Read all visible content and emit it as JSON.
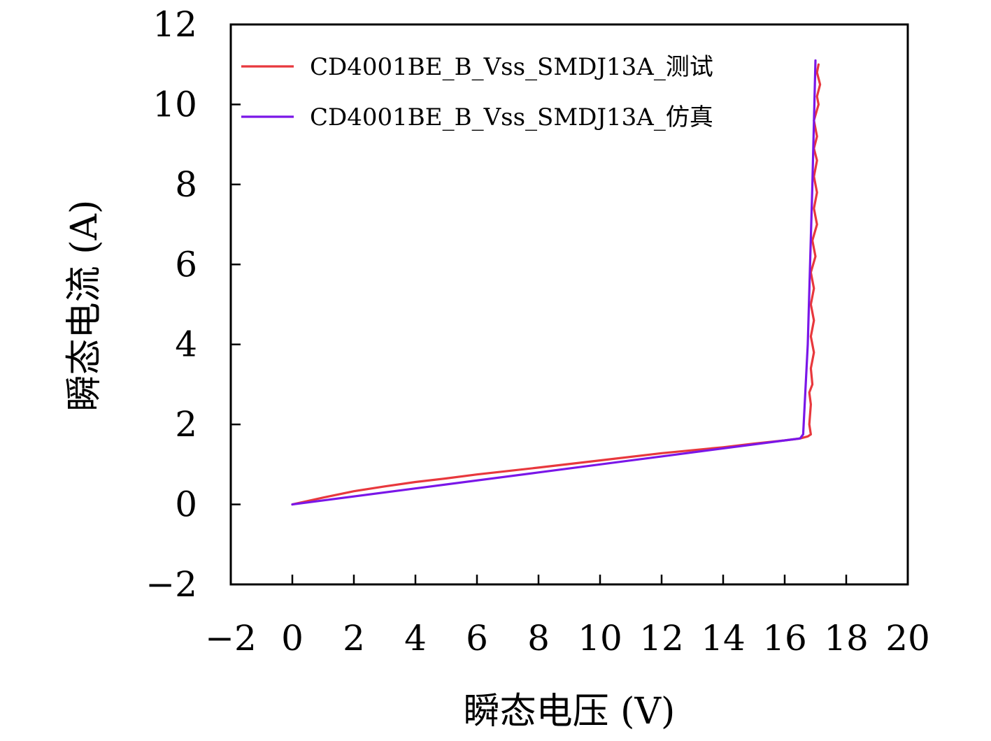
{
  "chart_data": {
    "type": "line",
    "title": "",
    "xlabel": "瞬态电压 (V)",
    "ylabel": "瞬态电流 (A)",
    "xlim": [
      -2,
      20
    ],
    "ylim": [
      -2,
      12
    ],
    "x_ticks": [
      -2,
      0,
      2,
      4,
      6,
      8,
      10,
      12,
      14,
      16,
      18,
      20
    ],
    "y_ticks": [
      -2,
      0,
      2,
      4,
      6,
      8,
      10,
      12
    ],
    "x_tick_labels": [
      "−2",
      "0",
      "2",
      "4",
      "6",
      "8",
      "10",
      "12",
      "14",
      "16",
      "18",
      "20"
    ],
    "y_tick_labels": [
      "−2",
      "0",
      "2",
      "4",
      "6",
      "8",
      "10",
      "12"
    ],
    "grid": false,
    "legend_position": "top-left",
    "series": [
      {
        "name": "CD4001BE_B_Vss_SMDJ13A_测试",
        "color": "#e8383d",
        "x": [
          0,
          1,
          2,
          3,
          4,
          5,
          6,
          8,
          10,
          12,
          14,
          15,
          16,
          16.5,
          16.75,
          16.85,
          16.8,
          16.85,
          16.8,
          16.9,
          16.85,
          16.95,
          16.85,
          16.95,
          16.85,
          16.95,
          16.85,
          17.0,
          16.9,
          17.05,
          16.95,
          17.05,
          16.95,
          17.05,
          16.95,
          17.05,
          16.95,
          17.1,
          17.05,
          17.15,
          17.05,
          17.1
        ],
        "y": [
          0,
          0.17,
          0.33,
          0.45,
          0.56,
          0.65,
          0.75,
          0.92,
          1.1,
          1.28,
          1.43,
          1.52,
          1.6,
          1.65,
          1.7,
          1.75,
          2.0,
          2.5,
          2.8,
          3.0,
          3.4,
          3.8,
          4.2,
          4.6,
          5.0,
          5.4,
          5.8,
          6.2,
          6.6,
          7.0,
          7.4,
          7.8,
          8.2,
          8.6,
          8.9,
          9.2,
          9.6,
          10.0,
          10.2,
          10.5,
          10.8,
          11.0
        ]
      },
      {
        "name": "CD4001BE_B_Vss_SMDJ13A_仿真",
        "color": "#7a16e8",
        "x": [
          0,
          4,
          8,
          12,
          16,
          16.5,
          16.6,
          16.75,
          16.9,
          17.0
        ],
        "y": [
          0,
          0.4,
          0.8,
          1.2,
          1.6,
          1.65,
          1.75,
          4.0,
          8.0,
          11.1
        ]
      }
    ]
  }
}
